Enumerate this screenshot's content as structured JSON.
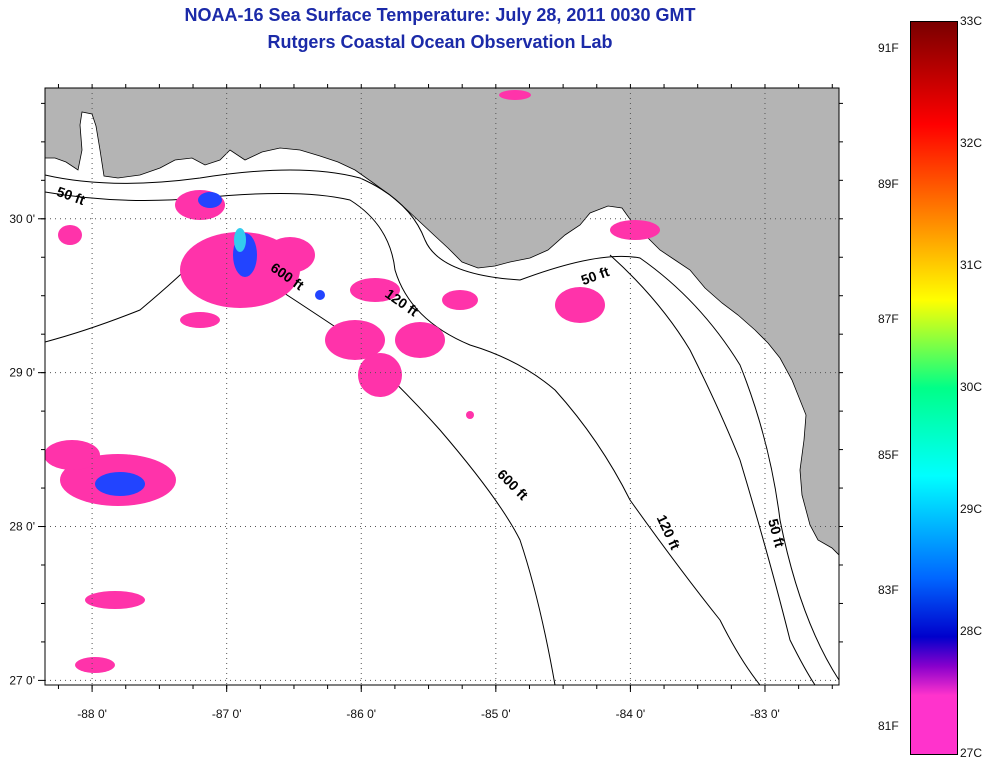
{
  "title_line1": "NOAA-16 Sea Surface Temperature:  July 28, 2011 0030 GMT",
  "title_line2": "Rutgers Coastal Ocean Observation Lab",
  "colors": {
    "land": "#b4b4b4",
    "ocean": "#ffffff",
    "sst_warm": "#ff33aa",
    "sst_blue": "#2244ff",
    "sst_cyan": "#33ccee",
    "title": "#1b2aa8"
  },
  "map": {
    "lon_range": [
      -88.35,
      -82.45
    ],
    "lat_range": [
      26.97,
      30.85
    ],
    "x_ticks": [
      "-88 0'",
      "-87 0'",
      "-86 0'",
      "-85 0'",
      "-84 0'",
      "-83 0'"
    ],
    "x_tick_values": [
      -88,
      -87,
      -86,
      -85,
      -84,
      -83
    ],
    "y_ticks": [
      "30 0'",
      "29 0'",
      "28 0'",
      "27 0'"
    ],
    "y_tick_values": [
      30,
      29,
      28,
      27
    ],
    "gridlines": "dotted",
    "contour_labels": [
      {
        "text": "50 ft",
        "lon": -88.17,
        "lat": 30.12,
        "angle": 20
      },
      {
        "text": "600 ft",
        "lon": -86.57,
        "lat": 29.6,
        "angle": 35
      },
      {
        "text": "120 ft",
        "lon": -85.72,
        "lat": 29.43,
        "angle": 35
      },
      {
        "text": "50 ft",
        "lon": -84.25,
        "lat": 29.6,
        "angle": -20
      },
      {
        "text": "600 ft",
        "lon": -84.9,
        "lat": 28.25,
        "angle": 45
      },
      {
        "text": "120 ft",
        "lon": -83.75,
        "lat": 27.95,
        "angle": 65
      },
      {
        "text": "50 ft",
        "lon": -82.95,
        "lat": 27.95,
        "angle": 75
      }
    ]
  },
  "colorbar": {
    "celsius_labels": [
      "33C",
      "32C",
      "31C",
      "30C",
      "29C",
      "28C",
      "27C"
    ],
    "celsius_values": [
      33,
      32,
      31,
      30,
      29,
      28,
      27
    ],
    "fahrenheit_labels": [
      "91F",
      "89F",
      "87F",
      "85F",
      "83F",
      "81F"
    ],
    "fahrenheit_values": [
      91,
      89,
      87,
      85,
      83,
      81
    ],
    "range_c": [
      27,
      33
    ]
  }
}
